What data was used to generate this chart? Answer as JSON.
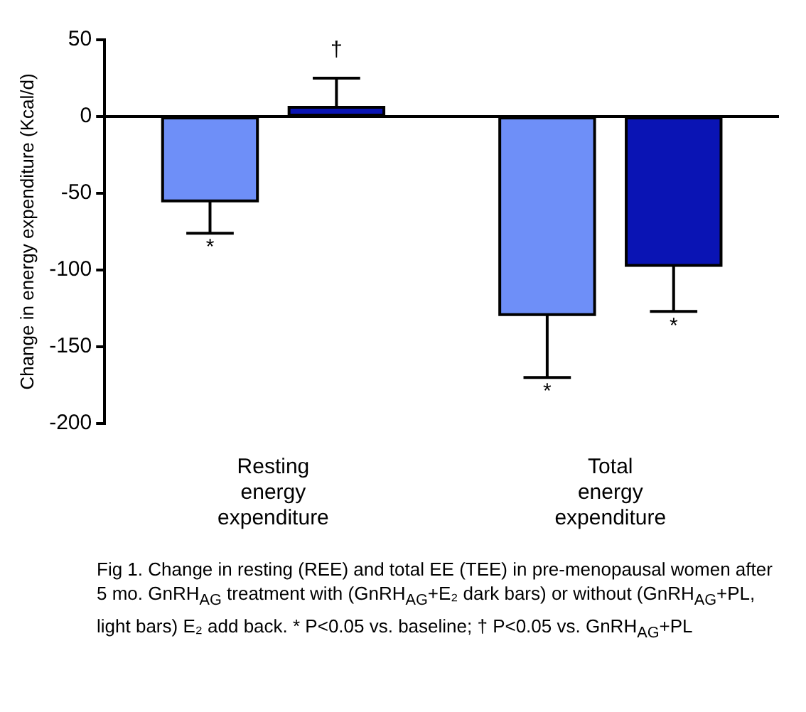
{
  "chart_data": {
    "type": "bar",
    "ylabel": "Change in energy expenditure (Kcal/d)",
    "categories": [
      "Resting energy expenditure",
      "Total energy expenditure"
    ],
    "series": [
      {
        "color": "#6e8ff8",
        "values": [
          -55,
          -129
        ],
        "errors": [
          [
            -76,
            -55
          ],
          [
            -170,
            -129
          ]
        ],
        "value_labels": [
          "*",
          "*"
        ]
      },
      {
        "color": "#0a14b4",
        "values": [
          6,
          -97
        ],
        "errors": [
          [
            6,
            25
          ],
          [
            -127,
            -97
          ]
        ],
        "value_labels": [
          "†",
          "*"
        ]
      }
    ],
    "ylim": [
      -200,
      50
    ],
    "yticks": [
      -200,
      -150,
      -100,
      -50,
      0,
      50
    ],
    "grid": false,
    "legend": false,
    "ref_lines": [
      {
        "axis": "y",
        "value": 0,
        "color": "#000000"
      }
    ],
    "annotations": [
      "Fig 1.  Change in resting (REE) and total EE (TEE) in pre-menopausal women after 5 mo. GnRH$_{AG}$ treatment with (GnRH$_{AG}$+E₂ dark bars) or without  (GnRH$_{AG}$+PL, light bars) E₂ add back. * P<0.05 vs. baseline; † P<0.05 vs. GnRH$_{AG}$+PL"
    ]
  }
}
